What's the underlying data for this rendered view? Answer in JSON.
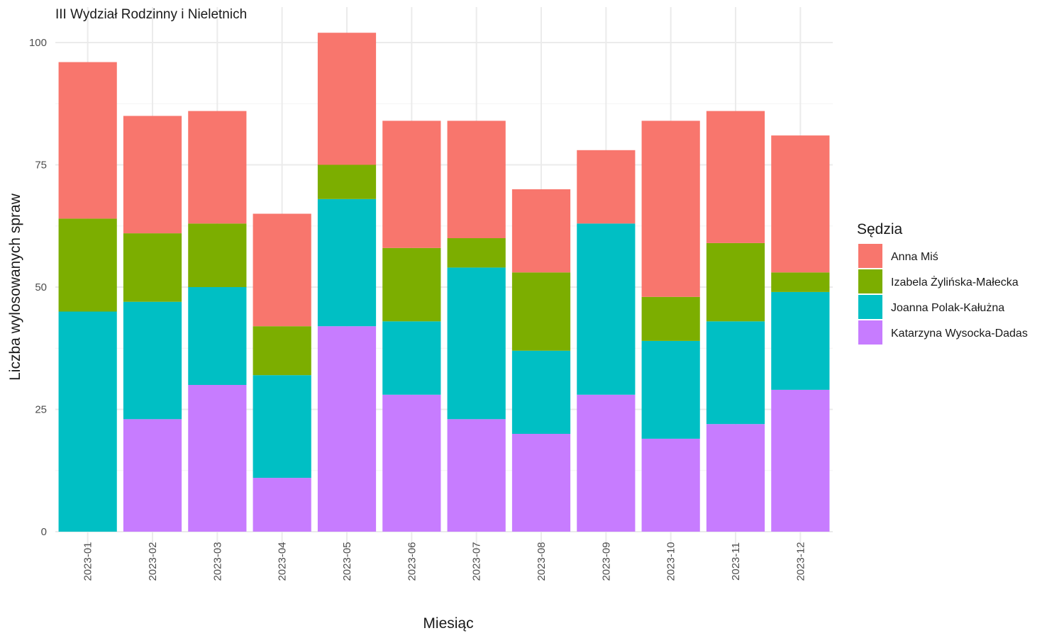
{
  "chart_data": {
    "type": "bar",
    "stacked": true,
    "title": "III Wydział Rodzinny i Nieletnich",
    "xlabel": "Miesiąc",
    "ylabel": "Liczba wylosowanych spraw",
    "ylim": [
      0,
      105
    ],
    "yticks": [
      0,
      25,
      50,
      75,
      100
    ],
    "grid": true,
    "legend": {
      "title": "Sędzia",
      "position": "right"
    },
    "categories": [
      "2023-01",
      "2023-02",
      "2023-03",
      "2023-04",
      "2023-05",
      "2023-06",
      "2023-07",
      "2023-08",
      "2023-09",
      "2023-10",
      "2023-11",
      "2023-12"
    ],
    "series": [
      {
        "name": "Katarzyna Wysocka-Dadas",
        "color": "#C77CFF",
        "values": [
          0,
          23,
          30,
          11,
          42,
          28,
          23,
          20,
          28,
          19,
          22,
          29
        ]
      },
      {
        "name": "Joanna Polak-Kałużna",
        "color": "#00BFC4",
        "values": [
          45,
          24,
          20,
          21,
          26,
          15,
          31,
          17,
          35,
          20,
          21,
          20
        ]
      },
      {
        "name": "Izabela Żylińska-Małecka",
        "color": "#7CAE00",
        "values": [
          19,
          14,
          13,
          10,
          7,
          15,
          6,
          16,
          0,
          9,
          16,
          4
        ]
      },
      {
        "name": "Anna Miś",
        "color": "#F8766D",
        "values": [
          32,
          24,
          23,
          23,
          27,
          26,
          24,
          17,
          15,
          36,
          27,
          28
        ]
      }
    ],
    "legend_order": [
      "Anna Miś",
      "Izabela Żylińska-Małecka",
      "Joanna Polak-Kałużna",
      "Katarzyna Wysocka-Dadas"
    ]
  }
}
